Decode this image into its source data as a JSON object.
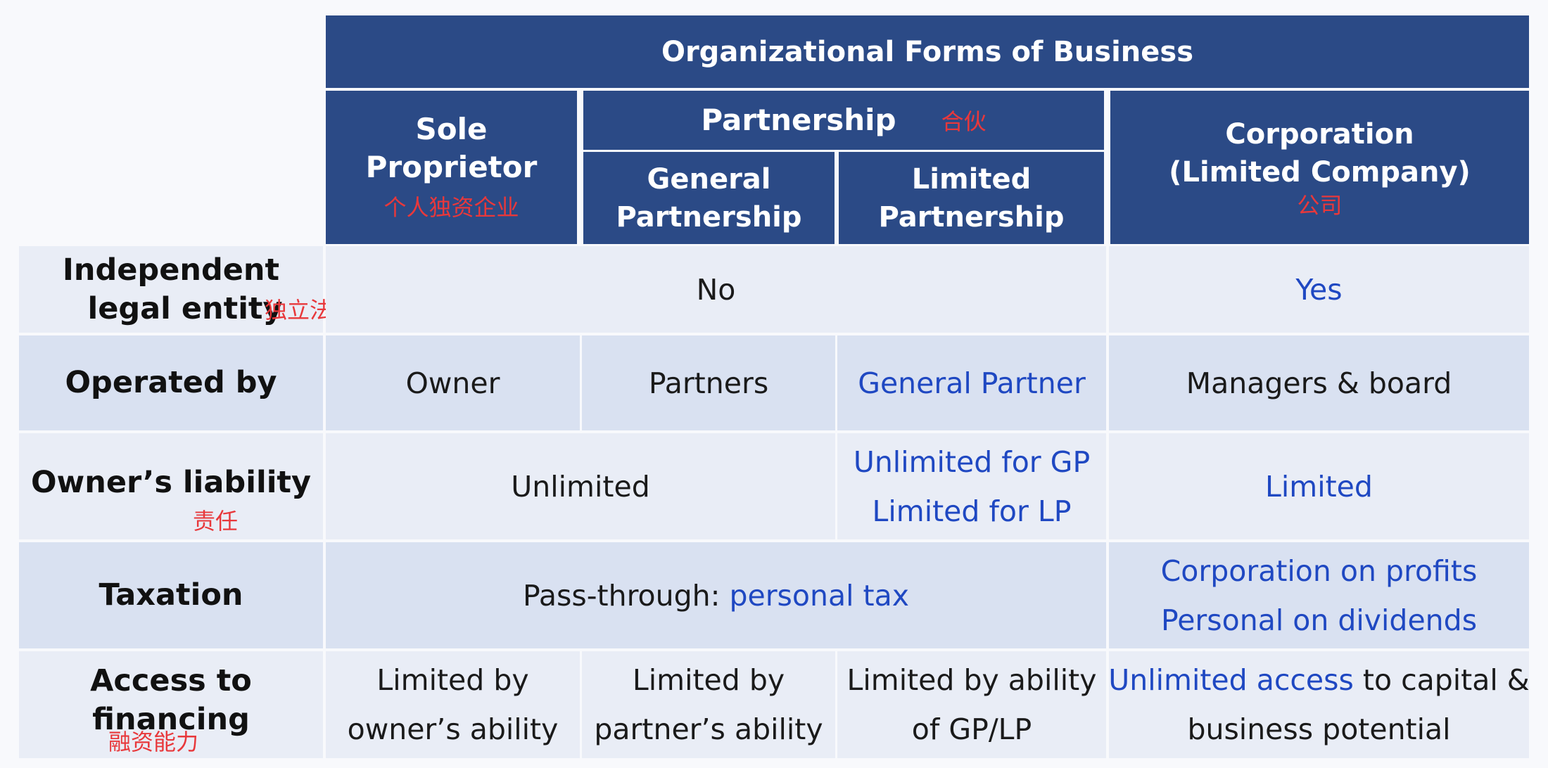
{
  "table": {
    "title": "Organizational Forms of Business",
    "headers": {
      "sole": {
        "label": "Sole Proprietor",
        "cn": "个人独资企业"
      },
      "partnership": {
        "label": "Partnership",
        "cn": "合伙"
      },
      "general": {
        "line1": "General",
        "line2": "Partnership"
      },
      "limited": {
        "line1": "Limited",
        "line2": "Partnership"
      },
      "corp": {
        "line1": "Corporation",
        "line2": "(Limited Company)",
        "cn": "公司"
      }
    },
    "rows": {
      "entity": {
        "label_line1": "Independent",
        "label_line2": "legal entity",
        "cn": "独立法人资格",
        "non_corp": "No",
        "corp": "Yes"
      },
      "operated": {
        "label": "Operated by",
        "sole": "Owner",
        "general": "Partners",
        "limited": "General Partner",
        "corp": "Managers & board"
      },
      "liability": {
        "label": "Owner’s liability",
        "cn": "责任",
        "sole_general": "Unlimited",
        "limited_line1": "Unlimited for GP",
        "limited_line2": "Limited for LP",
        "corp": "Limited"
      },
      "taxation": {
        "label": "Taxation",
        "non_corp_prefix": "Pass-through: ",
        "non_corp_highlight": "personal tax",
        "corp_line1": "Corporation on profits",
        "corp_line2": "Personal on dividends"
      },
      "financing": {
        "label": "Access to financing",
        "cn": "融资能力",
        "sole_line1": "Limited by",
        "sole_line2": "owner’s ability",
        "general_line1": "Limited by",
        "general_line2": "partner’s ability",
        "limited_line1": "Limited by ability",
        "limited_line2": "of GP/LP",
        "corp_highlight": "Unlimited access",
        "corp_rest": " to capital &",
        "corp_line2": "business potential"
      }
    }
  },
  "colors": {
    "header_bg": "#2b4a86",
    "header_text": "#ffffff",
    "chinese_annotation": "#e8383b",
    "highlight_blue": "#1f48c2",
    "row_bg_light": "#e9edf6",
    "row_bg_dark": "#d9e1f1"
  }
}
